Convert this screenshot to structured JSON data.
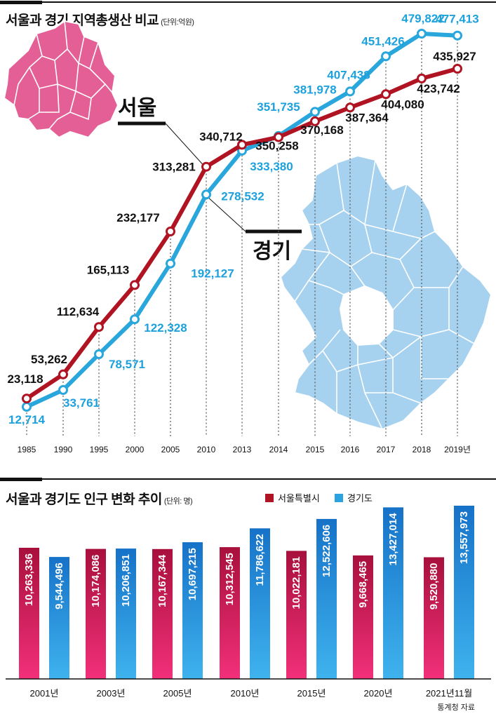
{
  "top_chart": {
    "title": "서울과 경기 지역총생산 비교",
    "unit": "(단위:억원)",
    "region_labels": {
      "seoul": "서울",
      "gyeonggi": "경기"
    }
  },
  "bottom_chart": {
    "title": "서울과 경기도 인구 변화 추이",
    "unit": "(단위: 명)",
    "legend": {
      "seoul": "서울특별시",
      "gyeonggi": "경기도"
    }
  },
  "source": "통계청 자료",
  "colors": {
    "seoul": "#b01322",
    "gyeonggi": "#29a7dd",
    "seoul_bar": "#c8155a",
    "gyeonggi_bar": "#1e90d6"
  },
  "chart_data": [
    {
      "type": "line",
      "title": "서울과 경기 지역총생산 비교",
      "unit": "(단위:억원)",
      "categories": [
        "1985",
        "1990",
        "1995",
        "2000",
        "2005",
        "2010",
        "2013",
        "2014",
        "2015",
        "2016",
        "2017",
        "2018",
        "2019년"
      ],
      "series": [
        {
          "name": "서울",
          "values": [
            23118,
            53262,
            112634,
            165113,
            232177,
            313281,
            340712,
            350258,
            370168,
            387364,
            404080,
            423742,
            435927
          ],
          "labels": [
            "23,118",
            "53,262",
            "112,634",
            "165,113",
            "232,177",
            "313,281",
            "340,712",
            "350,258",
            "370,168",
            "387,364",
            "404,080",
            "423,742",
            "435,927"
          ]
        },
        {
          "name": "경기",
          "values": [
            12714,
            33761,
            78571,
            122328,
            192127,
            278532,
            333380,
            351735,
            381978,
            407438,
            451426,
            479822,
            477413
          ],
          "labels": [
            "12,714",
            "33,761",
            "78,571",
            "122,328",
            "192,127",
            "278,532",
            "333,380",
            "351,735",
            "381,978",
            "407,438",
            "451,426",
            "479,822",
            "477,413"
          ]
        }
      ]
    },
    {
      "type": "bar",
      "title": "서울과 경기도 인구 변화 추이",
      "unit": "(단위: 명)",
      "categories": [
        "2001년",
        "2003년",
        "2005년",
        "2010년",
        "2015년",
        "2020년",
        "2021년11월"
      ],
      "series": [
        {
          "name": "서울특별시",
          "values": [
            10263336,
            10174086,
            10167344,
            10312545,
            10022181,
            9668465,
            9520880
          ],
          "labels": [
            "10,263,336",
            "10,174,086",
            "10,167,344",
            "10,312,545",
            "10,022,181",
            "9,668,465",
            "9,520,880"
          ]
        },
        {
          "name": "경기도",
          "values": [
            9544496,
            10206851,
            10697215,
            11786622,
            12522606,
            13427014,
            13557973
          ],
          "labels": [
            "9,544,496",
            "10,206,851",
            "10,697,215",
            "11,786,622",
            "12,522,606",
            "13,427,014",
            "13,557,973"
          ]
        }
      ]
    }
  ]
}
